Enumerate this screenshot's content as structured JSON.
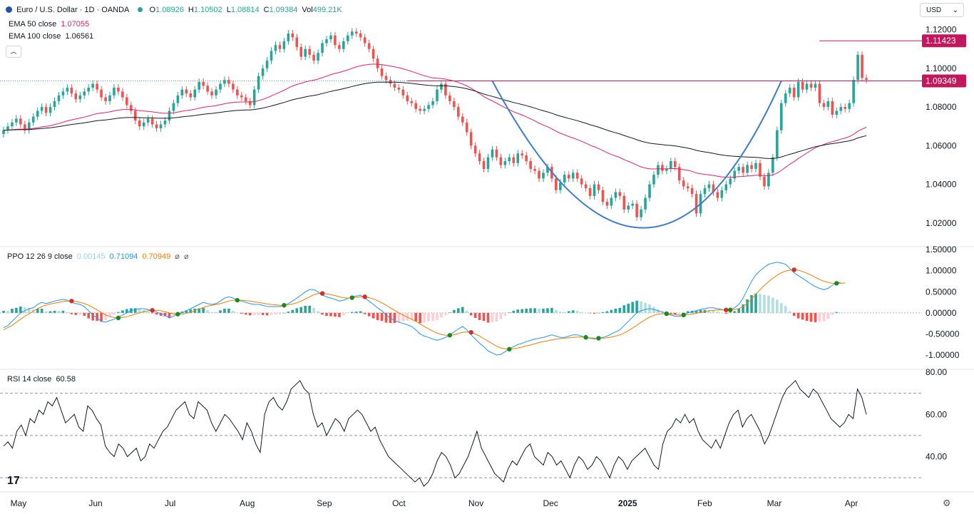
{
  "header": {
    "symbol": "Euro / U.S. Dollar · 1D · OANDA",
    "o_label": "O",
    "o": "1.08926",
    "h_label": "H",
    "h": "1.10502",
    "l_label": "L",
    "l": "1.08814",
    "c_label": "C",
    "c": "1.09384",
    "vol_label": "Vol",
    "vol": "499.21K",
    "ema50_label": "EMA 50 close",
    "ema50": "1.07055",
    "ema100_label": "EMA 100 close",
    "ema100": "1.06561",
    "currency": "USD"
  },
  "ppo_header": {
    "label": "PPO 12 26 9 close",
    "v1": "0.00145",
    "v2": "0.71094",
    "v3": "0.70949"
  },
  "rsi_header": {
    "label": "RSI 14 close",
    "v": "60.58"
  },
  "colors": {
    "up": "#26a69a",
    "down": "#ef5350",
    "ema50": "#e91e63",
    "ema100": "#131722",
    "cup": "#3d7cc9",
    "level": "#c2185b",
    "ppo": "#2196f3",
    "signal": "#f57c00"
  },
  "icons": {
    "symbol": "eur-usd-flag-icon",
    "collapse": "chevron-up-icon",
    "logo": "tradingview-logo",
    "settings": "settings-icon"
  },
  "chart_data": [
    {
      "type": "candlestick",
      "title": "Euro / U.S. Dollar · 1D · OANDA",
      "ylim": [
        1.01,
        1.125
      ],
      "yticks": [
        "1.12000",
        "1.10000",
        "1.08000",
        "1.06000",
        "1.04000",
        "1.02000"
      ],
      "xticks": [
        "May",
        "Jun",
        "Jul",
        "Aug",
        "Sep",
        "Oct",
        "Nov",
        "Dec",
        "2025",
        "Feb",
        "Mar",
        "Apr"
      ],
      "x_start": "2024-04-25",
      "x_end": "2025-04-07",
      "close": [
        1.068,
        1.07,
        1.072,
        1.074,
        1.071,
        1.068,
        1.072,
        1.075,
        1.078,
        1.08,
        1.077,
        1.08,
        1.083,
        1.086,
        1.088,
        1.09,
        1.087,
        1.084,
        1.086,
        1.088,
        1.09,
        1.092,
        1.089,
        1.085,
        1.083,
        1.086,
        1.09,
        1.088,
        1.085,
        1.081,
        1.078,
        1.073,
        1.07,
        1.072,
        1.074,
        1.071,
        1.069,
        1.071,
        1.073,
        1.078,
        1.082,
        1.086,
        1.089,
        1.087,
        1.085,
        1.089,
        1.093,
        1.091,
        1.088,
        1.086,
        1.089,
        1.092,
        1.094,
        1.092,
        1.089,
        1.086,
        1.085,
        1.083,
        1.081,
        1.089,
        1.096,
        1.1,
        1.104,
        1.109,
        1.112,
        1.11,
        1.114,
        1.118,
        1.116,
        1.111,
        1.106,
        1.11,
        1.107,
        1.104,
        1.108,
        1.113,
        1.115,
        1.117,
        1.112,
        1.11,
        1.114,
        1.117,
        1.119,
        1.118,
        1.116,
        1.113,
        1.11,
        1.105,
        1.1,
        1.096,
        1.094,
        1.092,
        1.09,
        1.089,
        1.086,
        1.083,
        1.082,
        1.079,
        1.078,
        1.079,
        1.081,
        1.083,
        1.089,
        1.092,
        1.086,
        1.083,
        1.08,
        1.075,
        1.072,
        1.067,
        1.06,
        1.056,
        1.052,
        1.048,
        1.054,
        1.058,
        1.054,
        1.05,
        1.052,
        1.054,
        1.051,
        1.056,
        1.055,
        1.052,
        1.048,
        1.047,
        1.043,
        1.046,
        1.049,
        1.043,
        1.037,
        1.041,
        1.045,
        1.043,
        1.046,
        1.043,
        1.04,
        1.038,
        1.034,
        1.04,
        1.037,
        1.031,
        1.029,
        1.033,
        1.036,
        1.034,
        1.027,
        1.029,
        1.03,
        1.023,
        1.027,
        1.033,
        1.04,
        1.045,
        1.05,
        1.047,
        1.048,
        1.052,
        1.049,
        1.042,
        1.039,
        1.038,
        1.035,
        1.025,
        1.035,
        1.038,
        1.04,
        1.036,
        1.033,
        1.037,
        1.04,
        1.043,
        1.047,
        1.049,
        1.046,
        1.05,
        1.048,
        1.051,
        1.044,
        1.039,
        1.046,
        1.054,
        1.068,
        1.082,
        1.087,
        1.09,
        1.085,
        1.093,
        1.089,
        1.092,
        1.09,
        1.092,
        1.082,
        1.08,
        1.083,
        1.076,
        1.078,
        1.08,
        1.079,
        1.082,
        1.094,
        1.107,
        1.095,
        1.094
      ]
    },
    {
      "type": "line",
      "title": "PPO 12 26 9 close",
      "ylim": [
        -1.2,
        1.5
      ],
      "yticks": [
        "1.50000",
        "1.00000",
        "0.50000",
        "0.00000",
        "-0.50000",
        "-1.00000"
      ],
      "series": [
        {
          "name": "PPO",
          "values": [
            -0.35,
            -0.3,
            -0.2,
            -0.1,
            0.0,
            0.05,
            0.1,
            0.12,
            0.2,
            0.25,
            0.22,
            0.25,
            0.28,
            0.3,
            0.32,
            0.3,
            0.25,
            0.22,
            0.2,
            0.15,
            0.05,
            -0.05,
            -0.12,
            -0.2,
            -0.22,
            -0.18,
            -0.15,
            -0.1,
            -0.05,
            0.0,
            0.05,
            0.08,
            0.1,
            0.1,
            0.08,
            0.05,
            0.02,
            -0.02,
            -0.05,
            -0.12,
            -0.08,
            -0.02,
            0.0,
            0.05,
            0.1,
            0.15,
            0.2,
            0.25,
            0.22,
            0.2,
            0.22,
            0.28,
            0.35,
            0.38,
            0.35,
            0.3,
            0.28,
            0.25,
            0.22,
            0.2,
            0.2,
            0.18,
            0.15,
            0.15,
            0.15,
            0.15,
            0.18,
            0.22,
            0.28,
            0.35,
            0.42,
            0.5,
            0.55,
            0.55,
            0.5,
            0.42,
            0.38,
            0.35,
            0.32,
            0.28,
            0.3,
            0.34,
            0.38,
            0.4,
            0.42,
            0.35,
            0.28,
            0.2,
            0.12,
            0.05,
            -0.05,
            -0.12,
            -0.18,
            -0.22,
            -0.25,
            -0.28,
            -0.32,
            -0.4,
            -0.5,
            -0.55,
            -0.58,
            -0.62,
            -0.65,
            -0.62,
            -0.58,
            -0.52,
            -0.45,
            -0.38,
            -0.32,
            -0.4,
            -0.52,
            -0.62,
            -0.72,
            -0.8,
            -0.9,
            -0.95,
            -1.0,
            -0.98,
            -0.92,
            -0.85,
            -0.8,
            -0.75,
            -0.72,
            -0.68,
            -0.65,
            -0.62,
            -0.6,
            -0.58,
            -0.55,
            -0.52,
            -0.55,
            -0.58,
            -0.58,
            -0.55,
            -0.52,
            -0.52,
            -0.55,
            -0.58,
            -0.6,
            -0.62,
            -0.6,
            -0.58,
            -0.55,
            -0.5,
            -0.45,
            -0.4,
            -0.3,
            -0.2,
            -0.1,
            0.0,
            0.05,
            0.08,
            0.1,
            0.08,
            0.05,
            0.02,
            -0.02,
            -0.05,
            -0.08,
            -0.08,
            -0.05,
            0.0,
            0.02,
            0.05,
            0.08,
            0.1,
            0.12,
            0.12,
            0.1,
            0.08,
            0.05,
            0.08,
            0.12,
            0.2,
            0.35,
            0.55,
            0.75,
            0.9,
            1.0,
            1.08,
            1.15,
            1.18,
            1.2,
            1.18,
            1.15,
            1.05,
            0.95,
            0.88,
            0.82,
            0.75,
            0.68,
            0.62,
            0.58,
            0.55,
            0.58,
            0.65,
            0.72,
            0.71
          ]
        },
        {
          "name": "Signal",
          "values": [
            -0.4,
            -0.35,
            -0.3,
            -0.22,
            -0.15,
            -0.08,
            -0.02,
            0.04,
            0.1,
            0.15,
            0.18,
            0.21,
            0.23,
            0.25,
            0.27,
            0.28,
            0.28,
            0.27,
            0.25,
            0.22,
            0.18,
            0.13,
            0.07,
            0.01,
            -0.05,
            -0.09,
            -0.11,
            -0.12,
            -0.11,
            -0.09,
            -0.06,
            -0.03,
            0.0,
            0.03,
            0.05,
            0.06,
            0.06,
            0.05,
            0.03,
            0.0,
            -0.02,
            -0.03,
            -0.03,
            -0.01,
            0.02,
            0.05,
            0.09,
            0.13,
            0.16,
            0.18,
            0.2,
            0.22,
            0.25,
            0.28,
            0.3,
            0.3,
            0.3,
            0.29,
            0.28,
            0.26,
            0.25,
            0.23,
            0.21,
            0.2,
            0.19,
            0.18,
            0.18,
            0.19,
            0.21,
            0.24,
            0.28,
            0.33,
            0.38,
            0.43,
            0.46,
            0.46,
            0.45,
            0.43,
            0.41,
            0.38,
            0.36,
            0.35,
            0.36,
            0.37,
            0.38,
            0.38,
            0.36,
            0.33,
            0.29,
            0.24,
            0.18,
            0.12,
            0.06,
            0.0,
            -0.05,
            -0.1,
            -0.15,
            -0.2,
            -0.26,
            -0.32,
            -0.38,
            -0.43,
            -0.48,
            -0.51,
            -0.53,
            -0.53,
            -0.52,
            -0.49,
            -0.46,
            -0.45,
            -0.46,
            -0.5,
            -0.55,
            -0.61,
            -0.67,
            -0.73,
            -0.79,
            -0.83,
            -0.85,
            -0.86,
            -0.85,
            -0.83,
            -0.81,
            -0.78,
            -0.76,
            -0.73,
            -0.7,
            -0.68,
            -0.66,
            -0.64,
            -0.62,
            -0.61,
            -0.6,
            -0.59,
            -0.58,
            -0.57,
            -0.57,
            -0.58,
            -0.59,
            -0.6,
            -0.6,
            -0.6,
            -0.59,
            -0.57,
            -0.55,
            -0.52,
            -0.48,
            -0.42,
            -0.36,
            -0.29,
            -0.22,
            -0.16,
            -0.1,
            -0.06,
            -0.03,
            -0.02,
            -0.02,
            -0.03,
            -0.04,
            -0.05,
            -0.05,
            -0.04,
            -0.03,
            -0.01,
            0.01,
            0.03,
            0.05,
            0.06,
            0.07,
            0.07,
            0.07,
            0.07,
            0.08,
            0.1,
            0.15,
            0.23,
            0.33,
            0.44,
            0.55,
            0.65,
            0.74,
            0.82,
            0.89,
            0.95,
            0.99,
            1.01,
            1.02,
            1.01,
            0.98,
            0.94,
            0.89,
            0.84,
            0.79,
            0.75,
            0.72,
            0.7,
            0.7,
            0.7,
            0.71
          ]
        }
      ]
    },
    {
      "type": "line",
      "title": "RSI 14 close",
      "ylim": [
        25,
        80
      ],
      "yticks": [
        "80.00",
        "60.00",
        "40.00"
      ],
      "levels": [
        70,
        50,
        30
      ],
      "series": [
        {
          "name": "RSI",
          "values": [
            45,
            47,
            44,
            52,
            55,
            50,
            58,
            56,
            62,
            60,
            66,
            64,
            68,
            62,
            56,
            58,
            60,
            54,
            52,
            64,
            62,
            58,
            55,
            45,
            42,
            40,
            46,
            44,
            40,
            42,
            44,
            38,
            40,
            46,
            44,
            48,
            52,
            54,
            58,
            62,
            64,
            66,
            60,
            58,
            66,
            64,
            62,
            56,
            52,
            56,
            60,
            58,
            55,
            52,
            48,
            56,
            52,
            46,
            42,
            60,
            66,
            68,
            64,
            62,
            66,
            72,
            74,
            76,
            72,
            70,
            60,
            54,
            56,
            50,
            54,
            58,
            56,
            52,
            58,
            60,
            62,
            60,
            56,
            52,
            54,
            48,
            44,
            40,
            38,
            36,
            34,
            32,
            30,
            28,
            30,
            26,
            28,
            32,
            38,
            42,
            40,
            36,
            30,
            32,
            36,
            40,
            46,
            52,
            44,
            40,
            36,
            32,
            30,
            28,
            34,
            38,
            36,
            40,
            44,
            46,
            40,
            38,
            36,
            42,
            40,
            36,
            38,
            34,
            30,
            36,
            40,
            38,
            34,
            36,
            40,
            38,
            34,
            30,
            36,
            40,
            38,
            34,
            38,
            40,
            42,
            44,
            40,
            36,
            34,
            46,
            52,
            54,
            58,
            56,
            60,
            56,
            58,
            52,
            48,
            46,
            44,
            48,
            44,
            50,
            56,
            60,
            62,
            54,
            58,
            60,
            56,
            52,
            46,
            50,
            56,
            62,
            68,
            72,
            74,
            76,
            72,
            70,
            68,
            72,
            70,
            66,
            62,
            58,
            56,
            54,
            56,
            60,
            58,
            72,
            68,
            60
          ]
        }
      ]
    }
  ],
  "price_labels": {
    "high": "1.11423",
    "current": "1.09349"
  },
  "levels": {
    "high": 1.11423,
    "current": 1.09349
  }
}
